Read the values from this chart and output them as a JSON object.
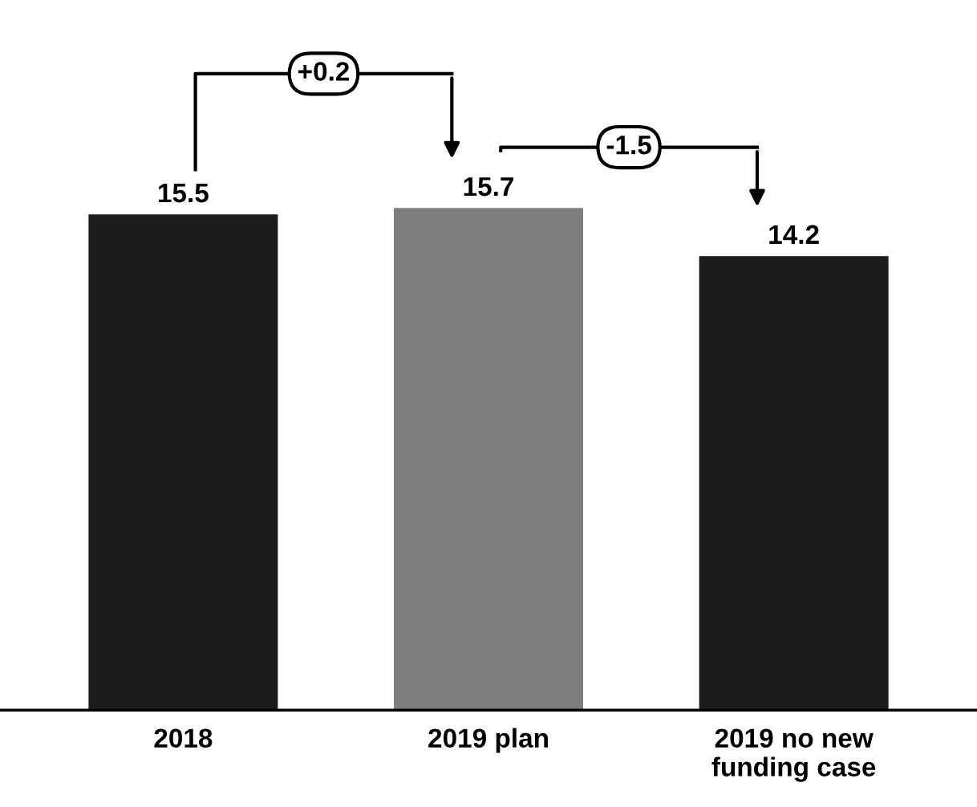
{
  "chart_data": {
    "type": "bar",
    "categories": [
      "2018",
      "2019 plan",
      "2019 no new\nfunding case"
    ],
    "values": [
      15.5,
      15.7,
      14.2
    ],
    "colors": [
      "#1c1c1c",
      "#7d7d7d",
      "#1c1c1c"
    ],
    "data_labels": true,
    "annotations": [
      "+0.2",
      "-1.5"
    ]
  }
}
